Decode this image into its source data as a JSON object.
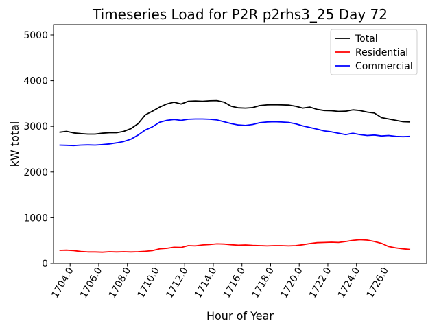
{
  "chart": {
    "title": "Timeseries Load for P2R p2rhs3_25  Day 72",
    "xlabel": "Hour of Year",
    "ylabel": "kW total"
  },
  "chart_data": {
    "type": "line",
    "title": "Timeseries Load for P2R p2rhs3_25  Day 72",
    "xlabel": "Hour of Year",
    "ylabel": "kW total",
    "grid": false,
    "legend_position": "upper right",
    "background": "#ffffff",
    "xlim": [
      1702.84,
      1728.9
    ],
    "ylim": [
      0,
      5225
    ],
    "xticks": [
      1704,
      1706,
      1708,
      1710,
      1712,
      1714,
      1716,
      1718,
      1720,
      1722,
      1724,
      1726
    ],
    "xtick_labels": [
      "1704.0",
      "1706.0",
      "1708.0",
      "1710.0",
      "1712.0",
      "1714.0",
      "1716.0",
      "1718.0",
      "1720.0",
      "1722.0",
      "1724.0",
      "1726.0"
    ],
    "yticks": [
      0,
      1000,
      2000,
      3000,
      4000,
      5000
    ],
    "ytick_labels": [
      "0",
      "1000",
      "2000",
      "3000",
      "4000",
      "5000"
    ],
    "xtick_rotation_deg": 60,
    "x": [
      1703.25,
      1703.75,
      1704.25,
      1704.75,
      1705.25,
      1705.75,
      1706.25,
      1706.75,
      1707.25,
      1707.75,
      1708.25,
      1708.75,
      1709.25,
      1709.75,
      1710.25,
      1710.75,
      1711.25,
      1711.75,
      1712.25,
      1712.75,
      1713.25,
      1713.75,
      1714.25,
      1714.75,
      1715.25,
      1715.75,
      1716.25,
      1716.75,
      1717.25,
      1717.75,
      1718.25,
      1718.75,
      1719.25,
      1719.75,
      1720.25,
      1720.75,
      1721.25,
      1721.75,
      1722.25,
      1722.75,
      1723.25,
      1723.75,
      1724.25,
      1724.75,
      1725.25,
      1725.75,
      1726.25,
      1726.75,
      1727.25,
      1727.75
    ],
    "series": [
      {
        "name": "Total",
        "color": "#000000",
        "values": [
          2870,
          2890,
          2855,
          2840,
          2830,
          2830,
          2850,
          2860,
          2860,
          2890,
          2950,
          3060,
          3250,
          3330,
          3420,
          3490,
          3530,
          3490,
          3550,
          3555,
          3550,
          3560,
          3565,
          3530,
          3440,
          3405,
          3400,
          3410,
          3455,
          3470,
          3475,
          3470,
          3465,
          3440,
          3400,
          3420,
          3370,
          3345,
          3340,
          3325,
          3330,
          3360,
          3345,
          3310,
          3290,
          3190,
          3160,
          3130,
          3100,
          3095
        ]
      },
      {
        "name": "Residential",
        "color": "#ff0000",
        "values": [
          285,
          290,
          280,
          260,
          250,
          250,
          245,
          255,
          250,
          255,
          250,
          255,
          265,
          280,
          320,
          330,
          355,
          350,
          390,
          385,
          405,
          415,
          430,
          425,
          410,
          400,
          405,
          395,
          390,
          385,
          390,
          390,
          385,
          390,
          410,
          435,
          455,
          460,
          465,
          460,
          480,
          505,
          520,
          510,
          480,
          440,
          370,
          340,
          320,
          305
        ]
      },
      {
        "name": "Commercial",
        "color": "#0000ff",
        "values": [
          2590,
          2585,
          2580,
          2590,
          2595,
          2590,
          2600,
          2615,
          2640,
          2670,
          2720,
          2810,
          2920,
          2990,
          3090,
          3130,
          3150,
          3130,
          3155,
          3160,
          3160,
          3155,
          3140,
          3100,
          3060,
          3030,
          3020,
          3040,
          3080,
          3095,
          3100,
          3095,
          3085,
          3055,
          3010,
          2975,
          2940,
          2900,
          2880,
          2850,
          2820,
          2850,
          2820,
          2800,
          2810,
          2790,
          2800,
          2780,
          2775,
          2780
        ]
      }
    ]
  }
}
